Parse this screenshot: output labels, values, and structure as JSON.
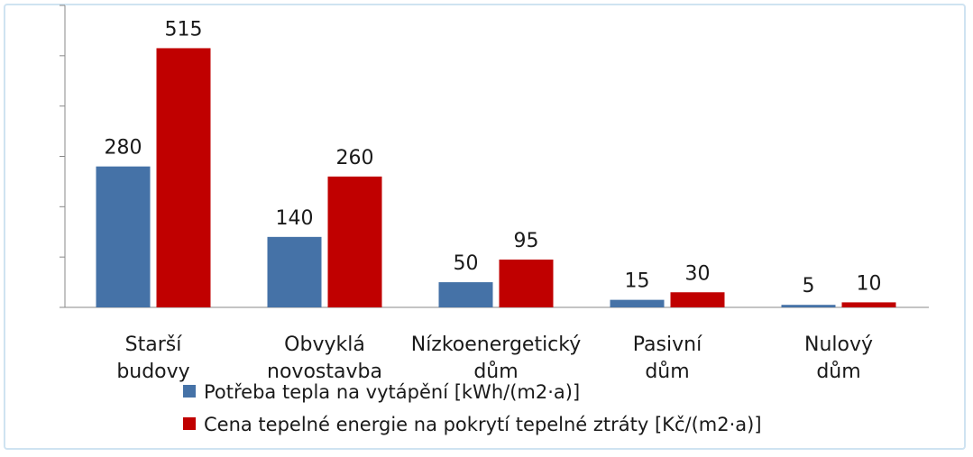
{
  "chart_data": {
    "type": "bar",
    "categories": [
      [
        "Starší",
        "budovy"
      ],
      [
        "Obvyklá",
        "novostavba"
      ],
      [
        "Nízkoenergetický",
        "dům"
      ],
      [
        "Pasivní",
        "dům"
      ],
      [
        "Nulový",
        "dům"
      ]
    ],
    "series": [
      {
        "name": "Potřeba tepla na vytápění [kWh/(m2·a)]",
        "color": "#4572a7",
        "values": [
          280,
          140,
          50,
          15,
          5
        ]
      },
      {
        "name": "Cena tepelné energie na pokrytí tepelné ztráty [Kč/(m2·a)]",
        "color": "#c00000",
        "values": [
          515,
          260,
          95,
          30,
          10
        ]
      }
    ],
    "ylim": [
      0,
      600
    ],
    "grid": false,
    "legend": "bottom",
    "title": "",
    "xlabel": "",
    "ylabel": ""
  }
}
